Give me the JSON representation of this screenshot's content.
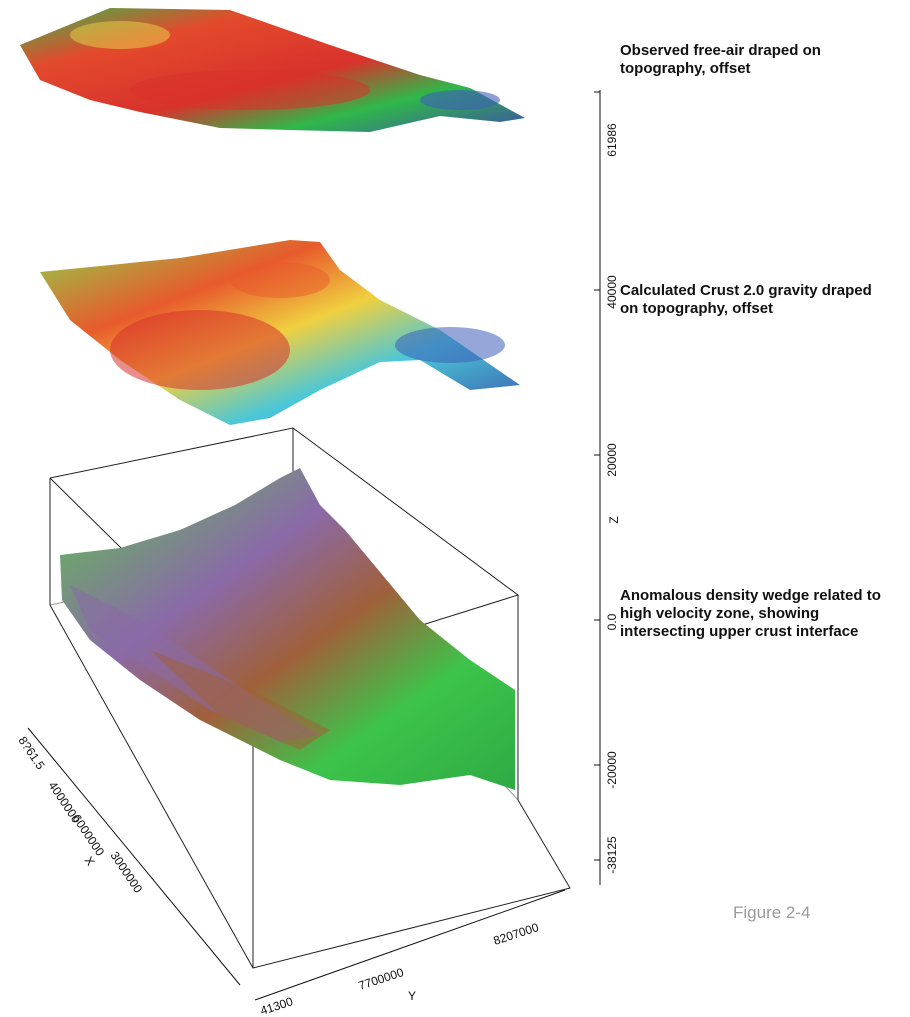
{
  "annotations": {
    "observed": "Observed free-air draped on\ntopography, offset",
    "calculated": "Calculated Crust 2.0 gravity draped\non topography, offset",
    "anomalous": "Anomalous density wedge related to\nhigh velocity zone, showing\nintersecting upper crust interface"
  },
  "figure_caption": "Figure 2-4",
  "axes": {
    "z": {
      "label": "Z",
      "ticks": [
        "61986",
        "40000",
        "20000",
        "0.0",
        "-20000",
        "-38125"
      ]
    },
    "x": {
      "label": "X",
      "ticks": [
        "8?61.5",
        "4000000",
        "6000000",
        "3000000"
      ]
    },
    "y": {
      "label": "Y",
      "ticks": [
        "41300",
        "7700000",
        "8207000"
      ]
    }
  },
  "colors": {
    "surface_green": "#2fb84a",
    "surface_red": "#d8322c",
    "surface_blue": "#3d5fb8",
    "surface_yellow": "#e8d84a",
    "surface_cyan": "#4ac7d8",
    "wedge_green": "#3cc44a",
    "wedge_purple": "#8a6aa8",
    "wedge_brown": "#a0603a"
  }
}
